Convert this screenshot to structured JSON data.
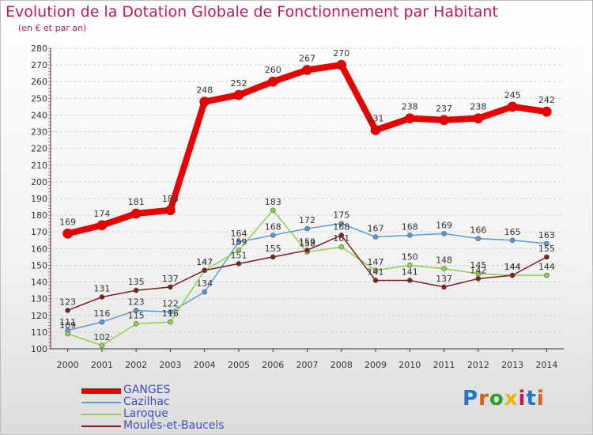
{
  "title": "Evolution de la Dotation Globale de Fonctionnement par Habitant",
  "subtitle": "(en € et par an)",
  "logo": "Proxiti",
  "colors": {
    "title": "#c2185b",
    "legend_text": "#3f51b5",
    "axis": "#333333",
    "grid": "#d0d0d0"
  },
  "chart_data": {
    "type": "line",
    "x": [
      2000,
      2001,
      2002,
      2003,
      2004,
      2005,
      2006,
      2007,
      2008,
      2009,
      2010,
      2011,
      2012,
      2013,
      2014
    ],
    "ylim": [
      100,
      280
    ],
    "yticks": [
      100,
      110,
      120,
      130,
      140,
      150,
      160,
      170,
      180,
      190,
      200,
      210,
      220,
      230,
      240,
      250,
      260,
      270,
      280
    ],
    "grid": true,
    "legend_position": "bottom-left",
    "series": [
      {
        "name": "GANGES",
        "color": "#e60000",
        "values": [
          169,
          174,
          181,
          183,
          248,
          252,
          260,
          267,
          270,
          231,
          238,
          237,
          238,
          245,
          242
        ]
      },
      {
        "name": "Cazilhac",
        "color": "#5b9bd5",
        "values": [
          111,
          116,
          123,
          122,
          134,
          164,
          168,
          172,
          175,
          167,
          168,
          169,
          166,
          165,
          163
        ]
      },
      {
        "name": "Laroque",
        "color": "#8fd14f",
        "values": [
          109,
          102,
          115,
          116,
          147,
          159,
          183,
          158,
          161,
          147,
          150,
          148,
          145,
          144,
          144
        ]
      },
      {
        "name": "Moulès-et-Baucels",
        "color": "#7b1f1f",
        "values": [
          123,
          131,
          135,
          137,
          147,
          151,
          155,
          159,
          168,
          141,
          141,
          137,
          142,
          144,
          155
        ]
      }
    ]
  }
}
